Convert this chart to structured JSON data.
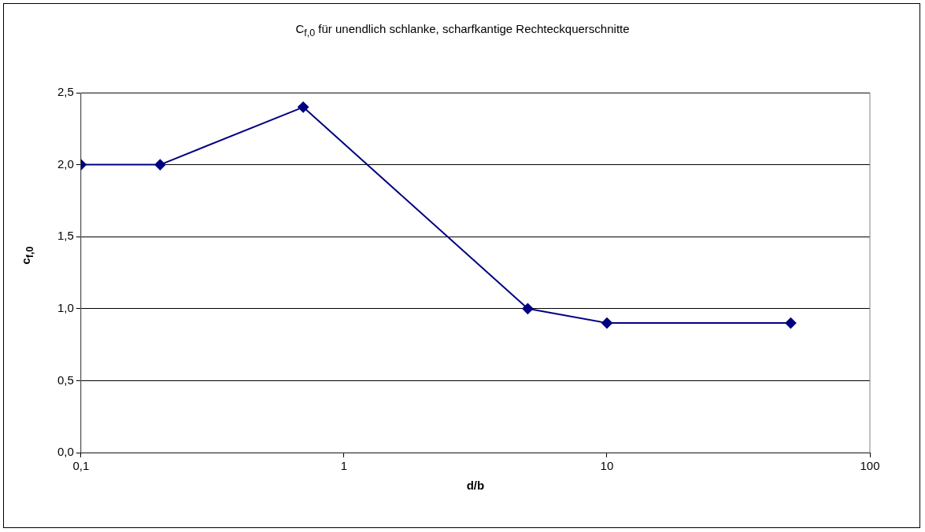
{
  "chart_data": {
    "type": "line",
    "title": "C$_{f,0}$ für unendlich schlanke, scharfkantige Rechteckquerschnitte",
    "xlabel": "d/b",
    "ylabel": "c$_{f,0}$",
    "x": [
      0.1,
      0.2,
      0.7,
      5,
      10,
      50
    ],
    "series": [
      {
        "color": "#000080",
        "values": [
          2.0,
          2.0,
          2.4,
          1.0,
          0.9,
          0.9
        ]
      }
    ],
    "log": "x",
    "xlim": [
      0.1,
      100
    ],
    "xticks": [
      {
        "value": 0.1,
        "label": "0,1"
      },
      1,
      10,
      100
    ],
    "ylim": [
      0,
      2.5
    ],
    "yticks": [
      {
        "value": 0,
        "label": "0,0"
      },
      {
        "value": 0.5,
        "label": "0,5"
      },
      {
        "value": 1,
        "label": "1,0"
      },
      {
        "value": 1.5,
        "label": "1,5"
      },
      {
        "value": 2,
        "label": "2,0"
      },
      {
        "value": 2.5,
        "label": "2,5"
      }
    ],
    "grid": "y",
    "legend": false,
    "marker": "diamond",
    "line_style": "solid"
  }
}
